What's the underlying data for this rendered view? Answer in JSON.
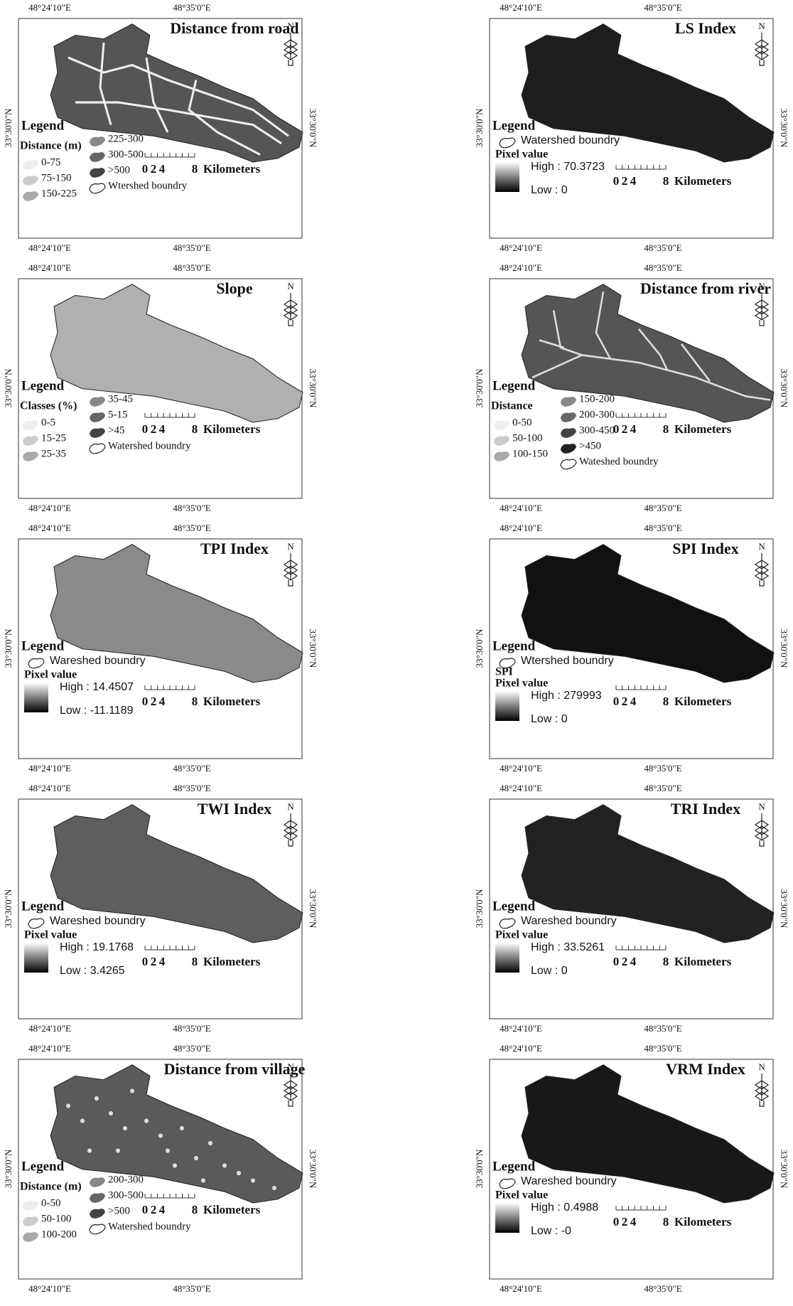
{
  "coordinates": {
    "lon_left": "48°24'10\"E",
    "lon_right": "48°35'0\"E",
    "lat": "33°30'0\"N"
  },
  "north": "N",
  "legend_label": "Legend",
  "scale_bar": {
    "labels": [
      "0",
      "2",
      "4",
      "8"
    ],
    "unit": "Kilometers"
  },
  "panels": [
    {
      "title": "Distance from road",
      "legend": {
        "heading": "Distance (m)",
        "items": [
          "0-75",
          "75-150",
          "150-225",
          "225-300",
          "300-500",
          ">500"
        ],
        "boundary": "Wtershed boundry"
      }
    },
    {
      "title": "LS Index",
      "legend": {
        "boundary": "Watershed boundry",
        "heading": "Pixel value",
        "high": "High : 70.3723",
        "low": "Low : 0"
      }
    },
    {
      "title": "Slope",
      "legend": {
        "heading": "Classes (%)",
        "items": [
          "0-5",
          "15-25",
          "25-35",
          "35-45",
          "5-15",
          ">45"
        ],
        "boundary": "Watershed boundry"
      }
    },
    {
      "title": "Distance from river",
      "legend": {
        "heading": "Distance",
        "items": [
          "0-50",
          "50-100",
          "100-150",
          "150-200",
          "200-300",
          "300-450",
          ">450"
        ],
        "boundary": "Wateshed boundry"
      }
    },
    {
      "title": "TPI Index",
      "legend": {
        "boundary": "Wareshed boundry",
        "heading": "Pixel value",
        "high": "High : 14.4507",
        "low": "Low : -11.1189"
      }
    },
    {
      "title": "SPI Index",
      "legend": {
        "boundary": "Wtershed boundry",
        "subheading": "SPI",
        "heading": "Pixel value",
        "high": "High : 279993",
        "low": "Low : 0"
      }
    },
    {
      "title": "TWI Index",
      "legend": {
        "boundary": "Wareshed boundry",
        "heading": "Pixel value",
        "high": "High : 19.1768",
        "low": "Low : 3.4265"
      }
    },
    {
      "title": "TRI Index",
      "legend": {
        "boundary": "Wareshed boundry",
        "heading": "Pixel value",
        "high": "High : 33.5261",
        "low": "Low : 0"
      }
    },
    {
      "title": "Distance from village",
      "legend": {
        "heading": "Distance (m)",
        "items": [
          "0-50",
          "50-100",
          "100-200",
          "200-300",
          "300-500",
          ">500"
        ],
        "boundary": "Watershed boundry"
      }
    },
    {
      "title": "VRM Index",
      "legend": {
        "boundary": "Wareshed boundry",
        "heading": "Pixel value",
        "high": "High : 0.4988",
        "low": "Low : -0"
      }
    }
  ]
}
